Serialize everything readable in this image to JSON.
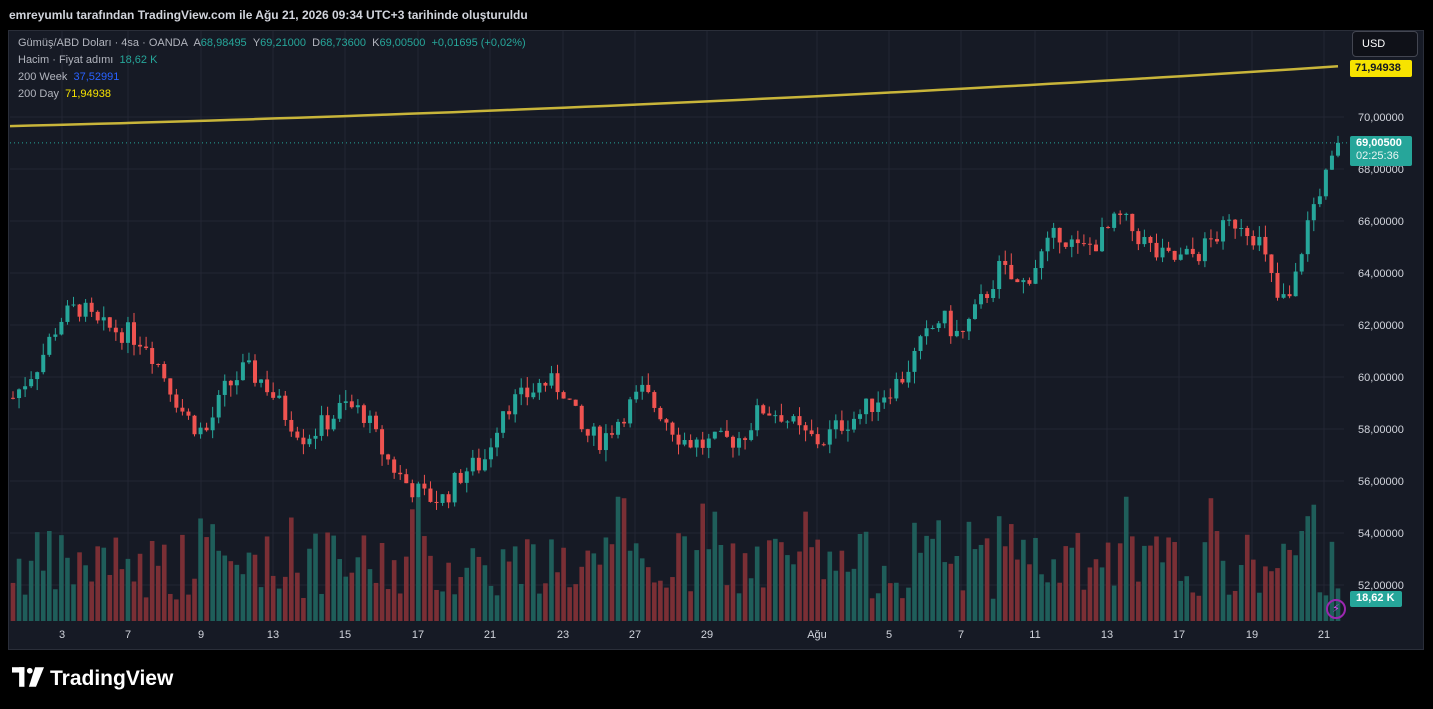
{
  "header": {
    "title": "emreyumlu tarafından TradingView.com ile Ağu 21, 2026 09:34 UTC+3 tarihinde oluşturuldu"
  },
  "legend": {
    "symbol": "Gümüş/ABD Doları · 4sa · OANDA",
    "open_label": "A",
    "open": "68,98495",
    "high_label": "Y",
    "high": "69,21000",
    "low_label": "D",
    "low": "68,73600",
    "close_label": "K",
    "close": "69,00500",
    "change": "+0,01695 (+0,02%)",
    "volume_label": "Hacim · Fiyat adımı",
    "volume": "18,62 K",
    "ma200w_label": "200 Week",
    "ma200w": "37,52991",
    "ma200d_label": "200 Day",
    "ma200d": "71,94938"
  },
  "currency_button": "USD",
  "price_tags": {
    "ma": "71,94938",
    "last_price": "69,00500",
    "countdown": "02:25:36",
    "volume": "18,62 K"
  },
  "brand": "TradingView",
  "colors": {
    "up": "#26a69a",
    "down": "#ef5350",
    "ma": "#c8b53a",
    "grid": "#232633",
    "axis_text": "#d1d4dc"
  },
  "icons": [
    "flash-icon",
    "tradingview-logo-icon"
  ],
  "chart_data": {
    "type": "candlestick",
    "title": "Gümüş/ABD Doları · 4sa · OANDA",
    "y_axis": {
      "ticks": [
        "70,00000",
        "68,00000",
        "66,00000",
        "64,00000",
        "62,00000",
        "60,00000",
        "58,00000",
        "56,00000",
        "54,00000",
        "52,00000"
      ],
      "tick_values": [
        70,
        68,
        66,
        64,
        62,
        60,
        58,
        56,
        54,
        52
      ],
      "range": [
        50.7,
        75.3
      ]
    },
    "x_axis": {
      "ticks": [
        "3",
        "7",
        "9",
        "13",
        "15",
        "17",
        "21",
        "23",
        "27",
        "29",
        "Ağu",
        "5",
        "7",
        "11",
        "13",
        "17",
        "19",
        "21"
      ]
    },
    "last_price": 69.005,
    "moving_average_200d": {
      "start": 69.65,
      "end": 71.949
    },
    "price_path": [
      [
        0,
        59.2
      ],
      [
        0.02,
        60.6
      ],
      [
        0.035,
        62.2
      ],
      [
        0.05,
        62.7
      ],
      [
        0.065,
        61.9
      ],
      [
        0.08,
        61.8
      ],
      [
        0.1,
        61.4
      ],
      [
        0.115,
        60.0
      ],
      [
        0.13,
        58.5
      ],
      [
        0.145,
        57.8
      ],
      [
        0.16,
        59.5
      ],
      [
        0.175,
        60.3
      ],
      [
        0.19,
        59.8
      ],
      [
        0.205,
        58.6
      ],
      [
        0.22,
        57.7
      ],
      [
        0.235,
        58.2
      ],
      [
        0.25,
        58.9
      ],
      [
        0.265,
        58.6
      ],
      [
        0.28,
        57.0
      ],
      [
        0.295,
        56.0
      ],
      [
        0.31,
        55.4
      ],
      [
        0.325,
        55.3
      ],
      [
        0.34,
        56.4
      ],
      [
        0.355,
        56.7
      ],
      [
        0.37,
        58.9
      ],
      [
        0.385,
        59.2
      ],
      [
        0.4,
        59.8
      ],
      [
        0.415,
        59.6
      ],
      [
        0.43,
        57.8
      ],
      [
        0.445,
        57.6
      ],
      [
        0.46,
        58.6
      ],
      [
        0.475,
        59.4
      ],
      [
        0.49,
        58.6
      ],
      [
        0.505,
        57.6
      ],
      [
        0.52,
        57.4
      ],
      [
        0.535,
        57.5
      ],
      [
        0.55,
        57.7
      ],
      [
        0.565,
        58.8
      ],
      [
        0.58,
        58.6
      ],
      [
        0.595,
        57.8
      ],
      [
        0.61,
        57.5
      ],
      [
        0.625,
        58.2
      ],
      [
        0.64,
        58.6
      ],
      [
        0.655,
        59.3
      ],
      [
        0.67,
        59.9
      ],
      [
        0.685,
        61.2
      ],
      [
        0.7,
        62.3
      ],
      [
        0.715,
        61.5
      ],
      [
        0.73,
        62.8
      ],
      [
        0.745,
        64.2
      ],
      [
        0.76,
        63.4
      ],
      [
        0.775,
        64.6
      ],
      [
        0.79,
        65.6
      ],
      [
        0.805,
        64.8
      ],
      [
        0.82,
        65.3
      ],
      [
        0.835,
        66.1
      ],
      [
        0.85,
        65.4
      ],
      [
        0.865,
        64.6
      ],
      [
        0.88,
        64.5
      ],
      [
        0.895,
        64.8
      ],
      [
        0.91,
        65.5
      ],
      [
        0.925,
        66.1
      ],
      [
        0.94,
        65.3
      ],
      [
        0.955,
        62.9
      ],
      [
        0.965,
        63.0
      ],
      [
        0.975,
        65.6
      ],
      [
        0.985,
        67.1
      ],
      [
        0.995,
        68.1
      ],
      [
        1.0,
        69.0
      ]
    ],
    "volume_range": [
      0,
      71
    ]
  }
}
